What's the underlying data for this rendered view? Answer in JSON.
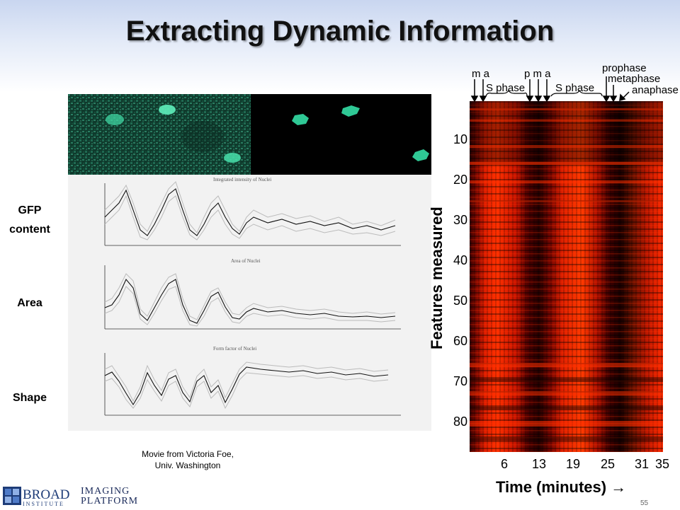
{
  "slide": {
    "title": "Extracting Dynamic Information"
  },
  "row_labels": {
    "gfp": "GFP\ncontent",
    "area": "Area",
    "shape": "Shape"
  },
  "credit": {
    "line1": "Movie from Victoria Foe,",
    "line2": "Univ.  Washington"
  },
  "heatmap": {
    "ylabel": "Features measured",
    "xlabel": "Time (minutes) →",
    "yticks": [
      "10",
      "20",
      "30",
      "40",
      "50",
      "60",
      "70",
      "80"
    ],
    "xticks": [
      "6",
      "13",
      "19",
      "25",
      "31",
      "35"
    ],
    "annotations": {
      "ma1": "m a",
      "pma": "p m a",
      "sphase1": "S phase",
      "sphase2": "S phase",
      "prophase": "prophase",
      "metaphase": "metaphase",
      "anaphase": "anaphase"
    },
    "colors": {
      "low": "#1a0000",
      "high": "#ff2a00"
    }
  },
  "plots": {
    "gfp_title": "Integrated intensity of Nuclei",
    "area_title": "Area of Nuclei",
    "shape_title": "Form factor of Nuclei",
    "xaxis_label": "Image number"
  },
  "logos": {
    "broad_main": "BROAD",
    "broad_sub": "INSTITUTE",
    "imaging_line1": "IMAGING",
    "imaging_line2": "PLATFORM"
  },
  "page_number": "55"
}
